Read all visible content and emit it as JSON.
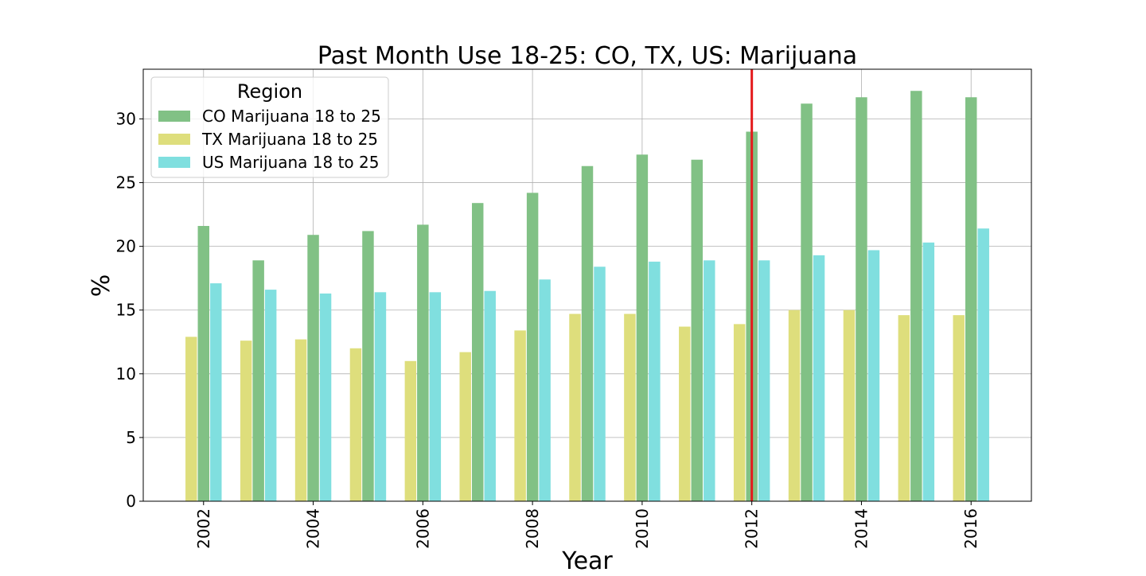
{
  "chart_data": {
    "type": "bar",
    "title": "Past Month Use 18-25: CO, TX, US: Marijuana",
    "xlabel": "Year",
    "ylabel": "%",
    "x": [
      2002,
      2003,
      2004,
      2005,
      2006,
      2007,
      2008,
      2009,
      2010,
      2011,
      2012,
      2013,
      2014,
      2015,
      2016
    ],
    "x_ticks": [
      "2002",
      "2004",
      "2006",
      "2008",
      "2010",
      "2012",
      "2014",
      "2016"
    ],
    "y_ticks": [
      "0",
      "5",
      "10",
      "15",
      "20",
      "25",
      "30"
    ],
    "ylim": [
      0,
      33.9
    ],
    "xlim": [
      2000.9,
      2017.1
    ],
    "grid": true,
    "legend": {
      "title": "Region",
      "placement": "top-left"
    },
    "vline": {
      "x": 2012,
      "color": "#e41a1c"
    },
    "series": [
      {
        "name": "CO Marijuana 18 to 25",
        "color": "#81c185",
        "values": [
          21.6,
          18.9,
          20.9,
          21.2,
          21.7,
          23.4,
          24.2,
          26.3,
          27.2,
          26.8,
          29.0,
          31.2,
          31.7,
          32.2,
          31.7
        ]
      },
      {
        "name": "TX Marijuana 18 to 25",
        "color": "#dede7c",
        "values": [
          12.9,
          12.6,
          12.7,
          12.0,
          11.0,
          11.7,
          13.4,
          14.7,
          14.7,
          13.7,
          13.9,
          15.0,
          15.0,
          14.6,
          14.6
        ]
      },
      {
        "name": "US Marijuana 18 to 25",
        "color": "#80dfdf",
        "values": [
          17.1,
          16.6,
          16.3,
          16.4,
          16.4,
          16.5,
          17.4,
          18.4,
          18.8,
          18.9,
          18.9,
          19.3,
          19.7,
          20.3,
          21.4
        ]
      }
    ]
  }
}
